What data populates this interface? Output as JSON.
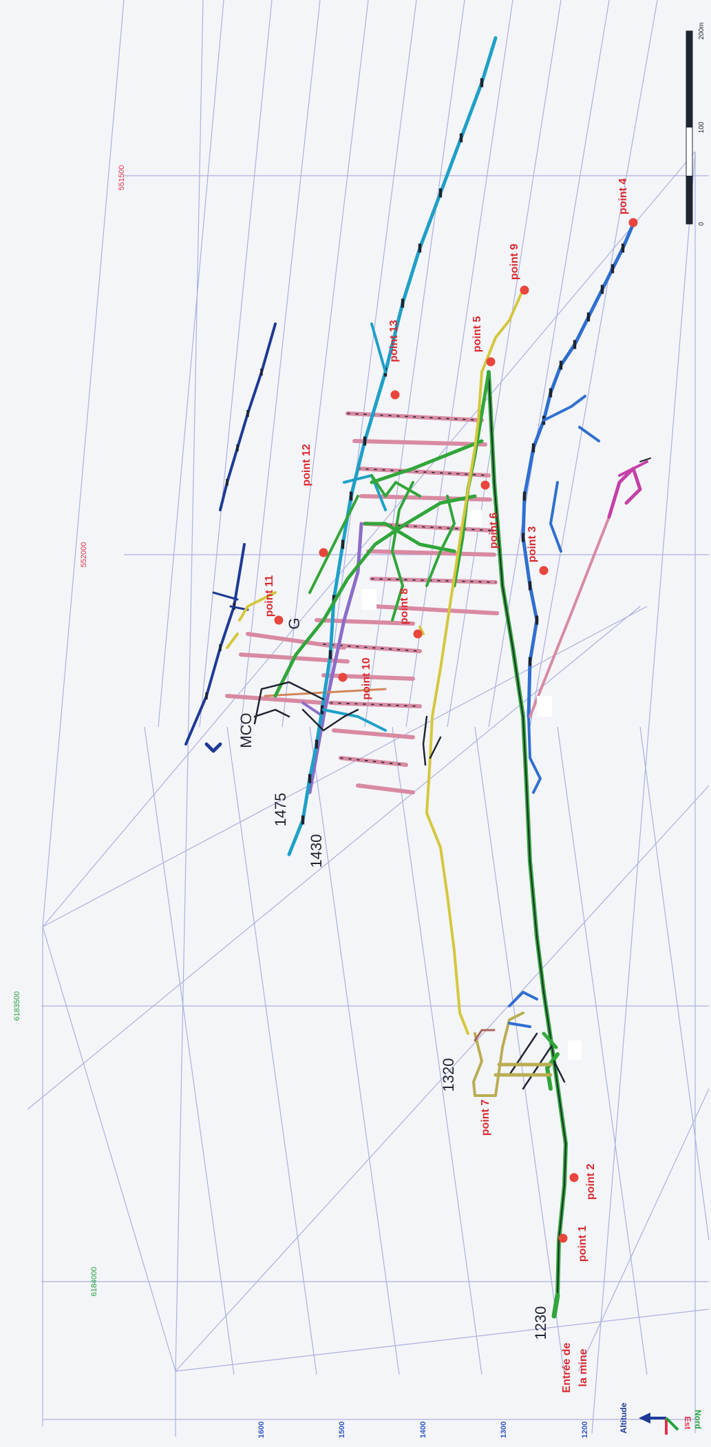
{
  "axes": {
    "red_ticks": [
      "551500",
      "552000"
    ],
    "green_ticks": [
      "6183500",
      "6184000"
    ],
    "altitude_ticks": [
      "1600",
      "1500",
      "1400",
      "1300",
      "1200"
    ]
  },
  "scale_bar": {
    "labels": [
      "0",
      "100",
      "200m"
    ]
  },
  "orientation": {
    "altitude": "Altitude",
    "est": "Est",
    "nord": "Nord"
  },
  "points": [
    {
      "label": "point 1"
    },
    {
      "label": "point 2"
    },
    {
      "label": "point 3"
    },
    {
      "label": "point 4"
    },
    {
      "label": "point 5"
    },
    {
      "label": "point 6"
    },
    {
      "label": "point 7"
    },
    {
      "label": "point 8"
    },
    {
      "label": "point 9"
    },
    {
      "label": "point 10"
    },
    {
      "label": "point 11"
    },
    {
      "label": "point 12"
    },
    {
      "label": "point 13"
    }
  ],
  "level_labels": [
    "1230",
    "1320",
    "1430",
    "1475",
    "MCO",
    "G"
  ],
  "entrance": {
    "line1": "Entrée de",
    "line2": "la mine"
  },
  "colors": {
    "grid": "#aab0df",
    "red_tick": "#e0304a",
    "green_tick": "#1fa33a",
    "altitude_tick": "#2f58c8",
    "point": "#e8463c",
    "point_label": "#d8282e",
    "main_green": "#31a63a",
    "cyan": "#1ea0c8",
    "navy": "#1d3a96",
    "blue": "#2f6fd0",
    "yellow": "#d4c73c",
    "pink": "#d88aa2",
    "purple": "#8c6cc8",
    "magenta": "#c440a8",
    "olive": "#b9ad52"
  }
}
